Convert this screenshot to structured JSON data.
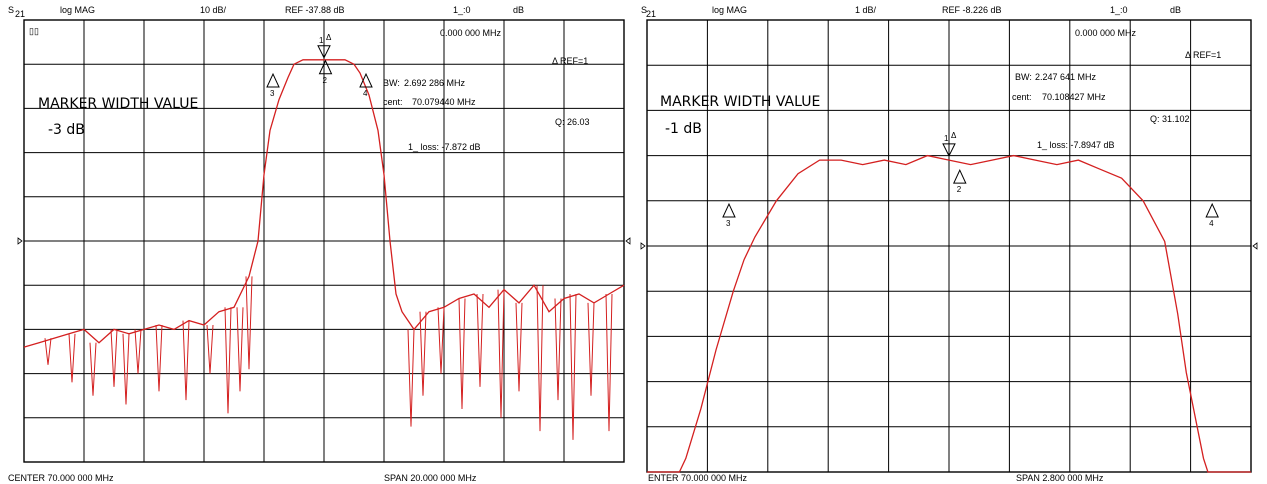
{
  "chart_data": [
    {
      "type": "line",
      "header": {
        "param_main": "S",
        "param_sub": "21",
        "format": "log MAG",
        "scale": "10 dB/",
        "ref": "REF -37.88 dB",
        "ch": "1_:0",
        "unit": "dB"
      },
      "corner_icon": "▯▯",
      "marker_freq": "0.000 000 MHz",
      "ref_mode": "Δ REF=1",
      "bw_label": "BW:",
      "bw_value": "2.692 286 MHz",
      "cent_label": "cent:",
      "cent_value": "70.079440 MHz",
      "q_text": "Q: 26.03",
      "loss_text": "1_ loss: -7.872 dB",
      "big_label": "MARKER WIDTH VALUE",
      "width_value": "-3 dB",
      "center_text": "CENTER 70.000 000 MHz",
      "span_text": "SPAN 20.000 000 MHz",
      "xlim_mhz": [
        60,
        80
      ],
      "ylim_div": [
        0,
        10
      ],
      "trace_color": "#d42020",
      "grid": true,
      "trace": {
        "x": [
          60.0,
          60.5,
          61.0,
          61.5,
          62.0,
          62.5,
          63.0,
          63.5,
          64.0,
          64.5,
          65.0,
          65.5,
          66.0,
          66.5,
          67.0,
          67.5,
          67.8,
          68.0,
          68.2,
          68.5,
          68.8,
          69.0,
          69.3,
          69.6,
          70.0,
          70.4,
          70.7,
          71.0,
          71.2,
          71.5,
          71.8,
          72.0,
          72.2,
          72.4,
          72.6,
          73.0,
          73.5,
          74.0,
          74.5,
          75.0,
          75.5,
          76.0,
          76.5,
          77.0,
          77.5,
          78.0,
          78.5,
          79.0,
          79.5,
          80.0
        ],
        "y": [
          7.4,
          7.3,
          7.2,
          7.1,
          7.0,
          7.3,
          7.0,
          7.1,
          7.0,
          6.9,
          7.0,
          6.8,
          6.9,
          6.6,
          6.5,
          5.8,
          5.0,
          3.5,
          2.5,
          1.8,
          1.3,
          1.0,
          0.9,
          0.9,
          0.9,
          0.9,
          0.9,
          1.0,
          1.2,
          1.7,
          2.5,
          3.5,
          5.0,
          6.2,
          6.6,
          7.0,
          6.6,
          6.5,
          6.3,
          6.2,
          6.5,
          6.1,
          6.4,
          6.0,
          6.6,
          6.3,
          6.2,
          6.4,
          6.2,
          6.0
        ]
      },
      "spikes": [
        {
          "x": 60.8,
          "y": 7.8
        },
        {
          "x": 61.6,
          "y": 8.2
        },
        {
          "x": 62.3,
          "y": 8.5
        },
        {
          "x": 63.0,
          "y": 8.3
        },
        {
          "x": 63.4,
          "y": 8.7
        },
        {
          "x": 63.8,
          "y": 8.0
        },
        {
          "x": 64.5,
          "y": 8.4
        },
        {
          "x": 65.4,
          "y": 8.6
        },
        {
          "x": 66.2,
          "y": 8.0
        },
        {
          "x": 66.8,
          "y": 8.9
        },
        {
          "x": 67.2,
          "y": 8.4
        },
        {
          "x": 67.5,
          "y": 7.9
        },
        {
          "x": 72.9,
          "y": 9.2
        },
        {
          "x": 73.3,
          "y": 8.5
        },
        {
          "x": 73.9,
          "y": 8.0
        },
        {
          "x": 74.6,
          "y": 8.8
        },
        {
          "x": 75.2,
          "y": 8.3
        },
        {
          "x": 75.9,
          "y": 9.0
        },
        {
          "x": 76.5,
          "y": 8.4
        },
        {
          "x": 77.2,
          "y": 9.3
        },
        {
          "x": 77.8,
          "y": 8.6
        },
        {
          "x": 78.3,
          "y": 9.5
        },
        {
          "x": 78.9,
          "y": 8.5
        },
        {
          "x": 79.5,
          "y": 9.3
        }
      ],
      "markers": [
        {
          "label": "1",
          "sup": "Δ",
          "x": 70.0,
          "y": 0.9,
          "dir": "down"
        },
        {
          "label": "2",
          "x": 70.05,
          "y": 0.9,
          "dir": "up"
        },
        {
          "label": "3",
          "x": 68.3,
          "y": 1.2,
          "dir": "up"
        },
        {
          "label": "4",
          "x": 71.4,
          "y": 1.2,
          "dir": "up"
        }
      ]
    },
    {
      "type": "line",
      "header": {
        "param_main": "S",
        "param_sub": "21",
        "format": "log MAG",
        "scale": "1 dB/",
        "ref": "REF -8.226 dB",
        "ch": "1_:0",
        "unit": "dB"
      },
      "marker_freq": "0.000 000 MHz",
      "ref_mode": "Δ REF=1",
      "bw_label": "BW:",
      "bw_value": "2.247 641 MHz",
      "cent_label": "cent:",
      "cent_value": "70.108427 MHz",
      "q_text": "Q: 31.102",
      "loss_text": "1_ loss: -7.8947 dB",
      "big_label": "MARKER WIDTH VALUE",
      "width_value": "-1 dB",
      "center_text": "ENTER 70.000 000 MHz",
      "span_text": "SPAN 2.800 000 MHz",
      "xlim_mhz": [
        68.6,
        71.4
      ],
      "ylim_div": [
        0,
        10
      ],
      "trace_color": "#d42020",
      "grid": true,
      "trace": {
        "x": [
          68.6,
          68.75,
          68.78,
          68.85,
          68.92,
          69.0,
          69.05,
          69.1,
          69.2,
          69.3,
          69.4,
          69.5,
          69.6,
          69.7,
          69.8,
          69.9,
          70.0,
          70.1,
          70.2,
          70.3,
          70.4,
          70.5,
          70.6,
          70.7,
          70.8,
          70.9,
          71.0,
          71.06,
          71.1,
          71.18,
          71.2,
          71.3,
          71.4
        ],
        "y": [
          10.0,
          10.0,
          9.7,
          8.6,
          7.3,
          6.0,
          5.3,
          4.8,
          4.0,
          3.4,
          3.1,
          3.1,
          3.2,
          3.1,
          3.2,
          3.0,
          3.1,
          3.2,
          3.1,
          3.0,
          3.1,
          3.2,
          3.1,
          3.3,
          3.5,
          4.0,
          4.9,
          6.5,
          7.8,
          9.7,
          10.0,
          10.0,
          10.0
        ]
      },
      "markers": [
        {
          "label": "1",
          "sup": "Δ",
          "x": 70.0,
          "y": 3.05,
          "dir": "down"
        },
        {
          "label": "2",
          "x": 70.05,
          "y": 3.3,
          "dir": "up"
        },
        {
          "label": "3",
          "x": 68.98,
          "y": 4.05,
          "dir": "up"
        },
        {
          "label": "4",
          "x": 71.22,
          "y": 4.05,
          "dir": "up"
        }
      ]
    }
  ]
}
